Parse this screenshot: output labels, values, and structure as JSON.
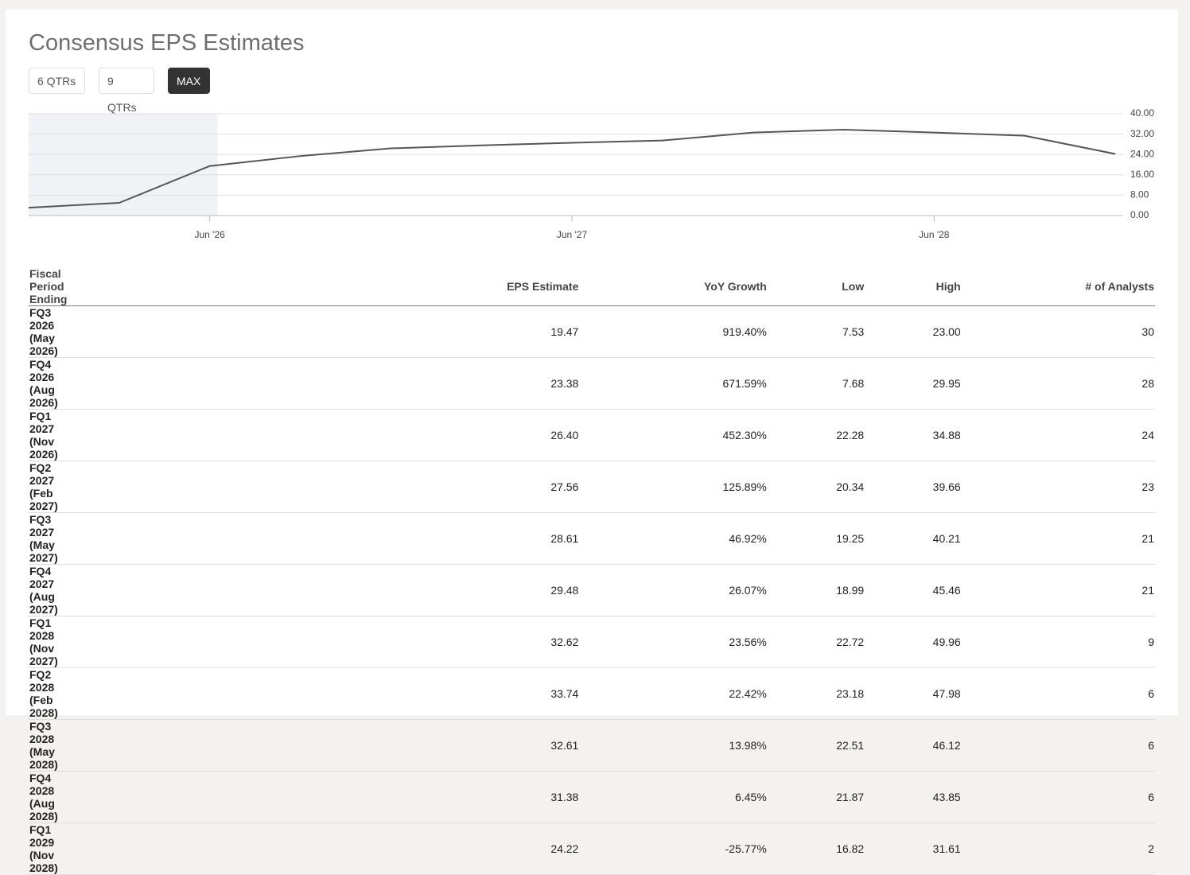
{
  "title": "Consensus EPS Estimates",
  "buttons": [
    "6 QTRs",
    "9 QTRs",
    "MAX"
  ],
  "chart_data": {
    "type": "line",
    "categories": [
      null,
      null,
      "Jun '26",
      null,
      null,
      null,
      "Jun '27",
      null,
      null,
      null,
      "Jun '28",
      null,
      null
    ],
    "series": [
      {
        "color": "#555555",
        "values": [
          3.1,
          5.0,
          19.47,
          23.38,
          26.4,
          27.56,
          28.61,
          29.48,
          32.62,
          33.74,
          32.61,
          31.38,
          24.22
        ]
      }
    ],
    "ylim": [
      0,
      40
    ],
    "yticks": [
      {
        "value": 0,
        "label": "0.00"
      },
      {
        "value": 8,
        "label": "8.00"
      },
      {
        "value": 16,
        "label": "16.00"
      },
      {
        "value": 24,
        "label": "24.00"
      },
      {
        "value": 32,
        "label": "32.00"
      },
      {
        "value": 40,
        "label": "40.00"
      }
    ],
    "grid": true
  },
  "table": {
    "header": [
      "Fiscal Period Ending",
      "EPS Estimate",
      "YoY Growth",
      "Low",
      "High",
      "# of Analysts"
    ],
    "rows": [
      [
        "FQ3 2026 (May 2026)",
        "19.47",
        "919.40%",
        "7.53",
        "23.00",
        "30"
      ],
      [
        "FQ4 2026 (Aug 2026)",
        "23.38",
        "671.59%",
        "7.68",
        "29.95",
        "28"
      ],
      [
        "FQ1 2027 (Nov 2026)",
        "26.40",
        "452.30%",
        "22.28",
        "34.88",
        "24"
      ],
      [
        "FQ2 2027 (Feb 2027)",
        "27.56",
        "125.89%",
        "20.34",
        "39.66",
        "23"
      ],
      [
        "FQ3 2027 (May 2027)",
        "28.61",
        "46.92%",
        "19.25",
        "40.21",
        "21"
      ],
      [
        "FQ4 2027 (Aug 2027)",
        "29.48",
        "26.07%",
        "18.99",
        "45.46",
        "21"
      ],
      [
        "FQ1 2028 (Nov 2027)",
        "32.62",
        "23.56%",
        "22.72",
        "49.96",
        "9"
      ],
      [
        "FQ2 2028 (Feb 2028)",
        "33.74",
        "22.42%",
        "23.18",
        "47.98",
        "6"
      ],
      [
        "FQ3 2028 (May 2028)",
        "32.61",
        "13.98%",
        "22.51",
        "46.12",
        "6"
      ],
      [
        "FQ4 2028 (Aug 2028)",
        "31.38",
        "6.45%",
        "21.87",
        "43.85",
        "6"
      ],
      [
        "FQ1 2029 (Nov 2028)",
        "24.22",
        "-25.77%",
        "16.82",
        "31.61",
        "2"
      ]
    ]
  }
}
